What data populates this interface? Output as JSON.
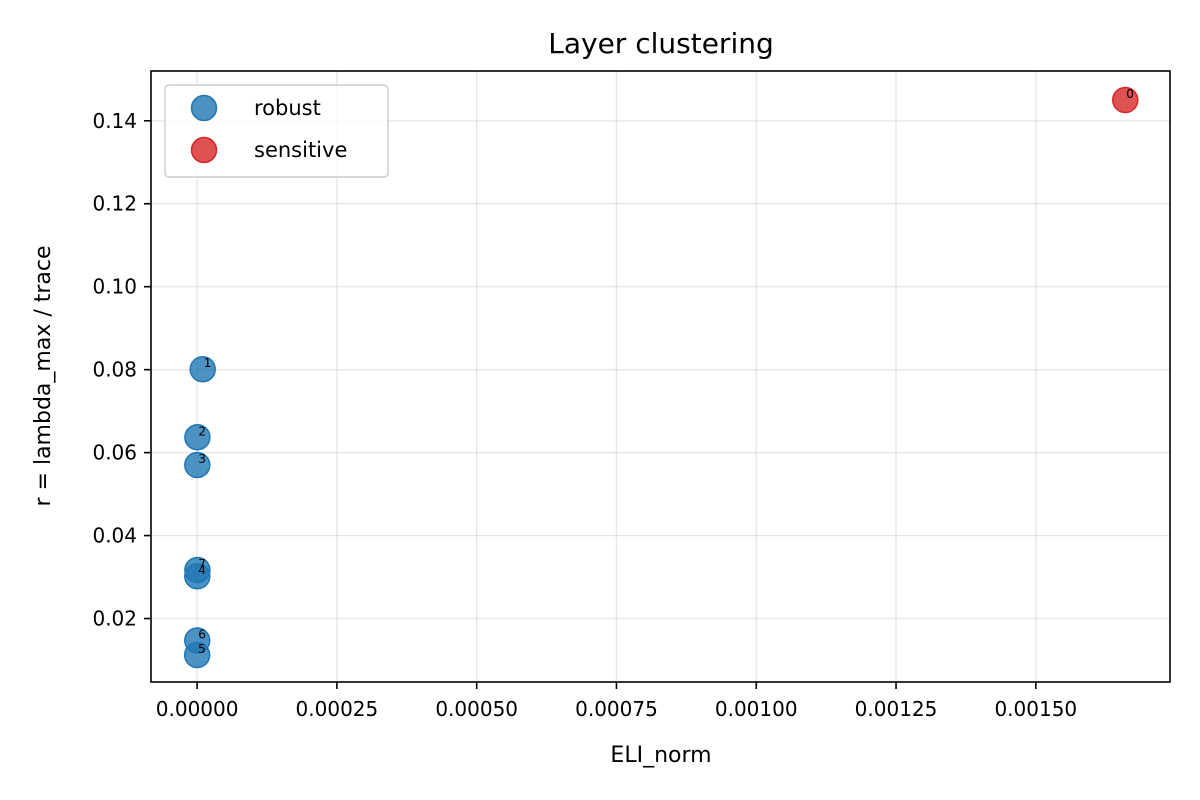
{
  "chart_data": {
    "type": "scatter",
    "title": "Layer clustering",
    "xlabel": "ELI_norm",
    "ylabel": "r = lambda_max / trace",
    "xlim": [
      -8.25e-05,
      0.00174
    ],
    "ylim": [
      0.0047,
      0.152
    ],
    "x_ticks": [
      0.0,
      0.00025,
      0.0005,
      0.00075,
      0.001,
      0.00125,
      0.0015
    ],
    "x_tick_labels": [
      "0.00000",
      "0.00025",
      "0.00050",
      "0.00075",
      "0.00100",
      "0.00125",
      "0.00150"
    ],
    "y_ticks": [
      0.02,
      0.04,
      0.06,
      0.08,
      0.1,
      0.12,
      0.14
    ],
    "y_tick_labels": [
      "0.02",
      "0.04",
      "0.06",
      "0.08",
      "0.10",
      "0.12",
      "0.14"
    ],
    "grid": true,
    "legend_position": "upper-left",
    "series": [
      {
        "name": "robust",
        "color": "#1f77b4",
        "points": [
          {
            "label": "1",
            "x": 1e-05,
            "y": 0.0801
          },
          {
            "label": "2",
            "x": 5e-07,
            "y": 0.0637
          },
          {
            "label": "3",
            "x": 3e-07,
            "y": 0.057
          },
          {
            "label": "7",
            "x": 5e-07,
            "y": 0.0317
          },
          {
            "label": "4",
            "x": 3e-07,
            "y": 0.0302
          },
          {
            "label": "6",
            "x": 2e-07,
            "y": 0.0147
          },
          {
            "label": "5",
            "x": 1e-07,
            "y": 0.0112
          }
        ]
      },
      {
        "name": "sensitive",
        "color": "#d62728",
        "points": [
          {
            "label": "0",
            "x": 0.00166,
            "y": 0.145
          }
        ]
      }
    ]
  }
}
